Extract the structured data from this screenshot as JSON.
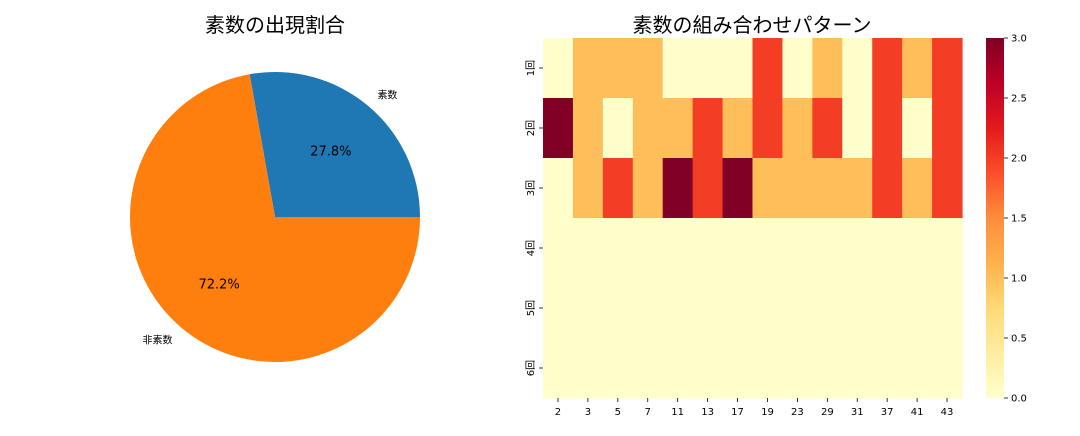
{
  "chart_data": [
    {
      "type": "pie",
      "title": "素数の出現割合",
      "slices": [
        {
          "label": "素数",
          "value": 27.8,
          "pct_label": "27.8%",
          "color": "#1f77b4"
        },
        {
          "label": "非素数",
          "value": 72.2,
          "pct_label": "72.2%",
          "color": "#ff7f0e"
        }
      ]
    },
    {
      "type": "heatmap",
      "title": "素数の組み合わせパターン",
      "x_labels": [
        "2",
        "3",
        "5",
        "7",
        "11",
        "13",
        "17",
        "19",
        "23",
        "29",
        "31",
        "37",
        "41",
        "43"
      ],
      "y_labels": [
        "1回",
        "2回",
        "3回",
        "4回",
        "5回",
        "6回"
      ],
      "values": [
        [
          0,
          1,
          1,
          1,
          0,
          0,
          0,
          2,
          0,
          1,
          0,
          2,
          1,
          2
        ],
        [
          3,
          1,
          0,
          1,
          1,
          2,
          1,
          2,
          1,
          2,
          0,
          2,
          0,
          2
        ],
        [
          0,
          1,
          2,
          1,
          3,
          2,
          3,
          1,
          1,
          1,
          1,
          2,
          1,
          2
        ],
        [
          0,
          0,
          0,
          0,
          0,
          0,
          0,
          0,
          0,
          0,
          0,
          0,
          0,
          0
        ],
        [
          0,
          0,
          0,
          0,
          0,
          0,
          0,
          0,
          0,
          0,
          0,
          0,
          0,
          0
        ],
        [
          0,
          0,
          0,
          0,
          0,
          0,
          0,
          0,
          0,
          0,
          0,
          0,
          0,
          0
        ]
      ],
      "colorscale": "YlOrRd",
      "value_colors": [
        "#ffffcc",
        "#febf5a",
        "#f43d25",
        "#800026"
      ],
      "vmin": 0,
      "vmax": 3,
      "colorbar_ticks": [
        "0.0",
        "0.5",
        "1.0",
        "1.5",
        "2.0",
        "2.5",
        "3.0"
      ]
    }
  ]
}
